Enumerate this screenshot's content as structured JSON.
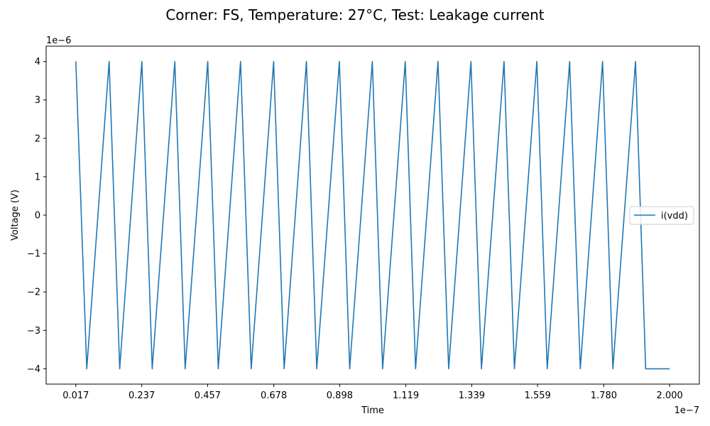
{
  "chart_data": {
    "type": "line",
    "title": "Corner: FS, Temperature: 27°C, Test: Leakage current",
    "xlabel": "Time",
    "ylabel": "Voltage (V)",
    "x_offset_label": "1e−7",
    "y_offset_label": "1e−6",
    "x_ticks": [
      0.017,
      0.237,
      0.457,
      0.678,
      0.898,
      1.119,
      1.339,
      1.559,
      1.78,
      2.0
    ],
    "x_tick_labels": [
      "0.017",
      "0.237",
      "0.457",
      "0.678",
      "0.898",
      "1.119",
      "1.339",
      "1.559",
      "1.780",
      "2.000"
    ],
    "y_ticks": [
      -4,
      -3,
      -2,
      -1,
      0,
      1,
      2,
      3,
      4
    ],
    "y_tick_labels": [
      "−4",
      "−3",
      "−2",
      "−1",
      "0",
      "1",
      "2",
      "3",
      "4"
    ],
    "xlim": [
      -0.0822,
      2.0992
    ],
    "ylim": [
      -4.4,
      4.4
    ],
    "grid": false,
    "legend_position": "right",
    "series": [
      {
        "name": "i(vdd)",
        "color": "#1f77b4",
        "x": [
          0.017,
          0.0535,
          0.128,
          0.1635,
          0.2375,
          0.272,
          0.3475,
          0.382,
          0.4575,
          0.4925,
          0.567,
          0.6025,
          0.6775,
          0.7125,
          0.787,
          0.8215,
          0.897,
          0.9315,
          1.007,
          1.0415,
          1.117,
          1.1515,
          1.2265,
          1.262,
          1.3365,
          1.3715,
          1.447,
          1.4815,
          1.5565,
          1.591,
          1.666,
          1.7015,
          1.776,
          1.8105,
          1.886,
          1.92,
          2.0
        ],
        "values": [
          4,
          -4,
          4,
          -4,
          4,
          -4,
          4,
          -4,
          4,
          -4,
          4,
          -4,
          4,
          -4,
          4,
          -4,
          4,
          -4,
          4,
          -4,
          4,
          -4,
          4,
          -4,
          4,
          -4,
          4,
          -4,
          4,
          -4,
          4,
          -4,
          4,
          -4,
          4,
          -4,
          -4
        ]
      }
    ]
  }
}
